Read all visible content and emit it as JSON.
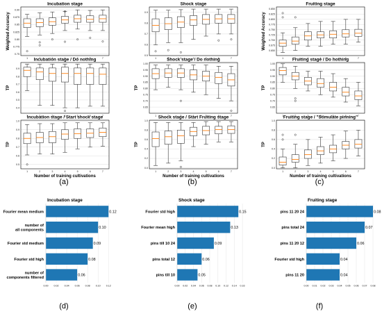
{
  "panel_letters": [
    "(a)",
    "(b)",
    "(c)",
    "(d)",
    "(e)",
    "(f)"
  ],
  "chart_data": [
    {
      "type": "box",
      "title": "Incubation stage",
      "xlabel": "",
      "ylabel": "Weighted Accuracy",
      "categories": [
        "1",
        "2",
        "3",
        "4",
        "5",
        "6",
        "7"
      ],
      "ylim": [
        0.745,
        0.91
      ],
      "yticks": [
        0.75,
        0.775,
        0.8,
        0.825,
        0.85,
        0.875,
        0.9
      ],
      "yticklabels": [
        "0.75",
        "0.775",
        "0.80",
        "0.825",
        "0.85",
        "0.875",
        "0.90"
      ],
      "boxes": [
        {
          "whislo": 0.81,
          "q1": 0.84,
          "med": 0.855,
          "q3": 0.87,
          "whishi": 0.885,
          "fliers": [
            0.76
          ]
        },
        {
          "whislo": 0.815,
          "q1": 0.843,
          "med": 0.857,
          "q3": 0.87,
          "whishi": 0.89,
          "fliers": [
            0.79,
            0.78
          ]
        },
        {
          "whislo": 0.82,
          "q1": 0.848,
          "med": 0.86,
          "q3": 0.873,
          "whishi": 0.893,
          "fliers": [
            0.8
          ]
        },
        {
          "whislo": 0.83,
          "q1": 0.855,
          "med": 0.866,
          "q3": 0.878,
          "whishi": 0.895,
          "fliers": [
            0.895,
            0.792
          ]
        },
        {
          "whislo": 0.835,
          "q1": 0.858,
          "med": 0.87,
          "q3": 0.882,
          "whishi": 0.9,
          "fliers": [
            0.8
          ]
        },
        {
          "whislo": 0.83,
          "q1": 0.858,
          "med": 0.868,
          "q3": 0.88,
          "whishi": 0.898,
          "fliers": [
            0.805
          ]
        },
        {
          "whislo": 0.83,
          "q1": 0.858,
          "med": 0.87,
          "q3": 0.882,
          "whishi": 0.9,
          "fliers": [
            0.793
          ]
        }
      ]
    },
    {
      "type": "box",
      "title": "Shock stage",
      "xlabel": "",
      "ylabel": "",
      "categories": [
        "1",
        "2",
        "3",
        "4",
        "5",
        "6",
        "7"
      ],
      "ylim": [
        0.5,
        0.95
      ],
      "yticks": [
        0.5,
        0.6,
        0.7,
        0.8,
        0.9
      ],
      "yticklabels": [
        "0.5",
        "0.6",
        "0.7",
        "0.8",
        "0.9"
      ],
      "boxes": [
        {
          "whislo": 0.6,
          "q1": 0.72,
          "med": 0.78,
          "q3": 0.84,
          "whishi": 0.92,
          "fliers": [
            0.54
          ]
        },
        {
          "whislo": 0.62,
          "q1": 0.74,
          "med": 0.795,
          "q3": 0.85,
          "whishi": 0.92,
          "fliers": [
            0.55
          ]
        },
        {
          "whislo": 0.62,
          "q1": 0.76,
          "med": 0.81,
          "q3": 0.86,
          "whishi": 0.925,
          "fliers": [
            0.53
          ]
        },
        {
          "whislo": 0.65,
          "q1": 0.78,
          "med": 0.83,
          "q3": 0.87,
          "whishi": 0.93,
          "fliers": []
        },
        {
          "whislo": 0.68,
          "q1": 0.79,
          "med": 0.835,
          "q3": 0.88,
          "whishi": 0.93,
          "fliers": []
        },
        {
          "whislo": 0.7,
          "q1": 0.8,
          "med": 0.84,
          "q3": 0.88,
          "whishi": 0.93,
          "fliers": [
            0.64
          ]
        },
        {
          "whislo": 0.7,
          "q1": 0.8,
          "med": 0.84,
          "q3": 0.88,
          "whishi": 0.93,
          "fliers": [
            0.65
          ]
        }
      ]
    },
    {
      "type": "box",
      "title": "Fruiting stage",
      "xlabel": "",
      "ylabel": "Weighted Accuracy",
      "categories": [
        "1",
        "2",
        "3",
        "4",
        "5",
        "6",
        "7"
      ],
      "ylim": [
        0.625,
        0.86
      ],
      "yticks": [
        0.65,
        0.675,
        0.7,
        0.725,
        0.75,
        0.775,
        0.8,
        0.825,
        0.85
      ],
      "yticklabels": [
        "0.650",
        "0.675",
        "0.700",
        "0.725",
        "0.750",
        "0.775",
        "0.800",
        "0.825",
        "0.850"
      ],
      "boxes": [
        {
          "whislo": 0.64,
          "q1": 0.67,
          "med": 0.685,
          "q3": 0.7,
          "whishi": 0.735,
          "fliers": [
            0.83,
            0.81
          ]
        },
        {
          "whislo": 0.65,
          "q1": 0.68,
          "med": 0.695,
          "q3": 0.715,
          "whishi": 0.76,
          "fliers": [
            0.81
          ]
        },
        {
          "whislo": 0.67,
          "q1": 0.7,
          "med": 0.72,
          "q3": 0.74,
          "whishi": 0.78,
          "fliers": []
        },
        {
          "whislo": 0.67,
          "q1": 0.71,
          "med": 0.725,
          "q3": 0.74,
          "whishi": 0.79,
          "fliers": []
        },
        {
          "whislo": 0.68,
          "q1": 0.71,
          "med": 0.728,
          "q3": 0.745,
          "whishi": 0.79,
          "fliers": []
        },
        {
          "whislo": 0.68,
          "q1": 0.715,
          "med": 0.73,
          "q3": 0.75,
          "whishi": 0.8,
          "fliers": []
        },
        {
          "whislo": 0.69,
          "q1": 0.718,
          "med": 0.733,
          "q3": 0.752,
          "whishi": 0.8,
          "fliers": []
        }
      ]
    },
    {
      "type": "box",
      "title": "Incubation stage  / Do nothing",
      "xlabel": "",
      "ylabel": "TP",
      "categories": [
        "1",
        "2",
        "3",
        "4",
        "5",
        "6",
        "7"
      ],
      "ylim": [
        0.33,
        0.98
      ],
      "yticks": [
        0.4,
        0.5,
        0.6,
        0.7,
        0.8,
        0.9
      ],
      "yticklabels": [
        "0.4",
        "0.5",
        "0.6",
        "0.7",
        "0.8",
        "0.9"
      ],
      "boxes": [
        {
          "whislo": 0.62,
          "q1": 0.8,
          "med": 0.88,
          "q3": 0.92,
          "whishi": 0.96,
          "fliers": []
        },
        {
          "whislo": 0.43,
          "q1": 0.76,
          "med": 0.86,
          "q3": 0.91,
          "whishi": 0.96,
          "fliers": []
        },
        {
          "whislo": 0.43,
          "q1": 0.74,
          "med": 0.84,
          "q3": 0.91,
          "whishi": 0.96,
          "fliers": []
        },
        {
          "whislo": 0.4,
          "q1": 0.73,
          "med": 0.84,
          "q3": 0.92,
          "whishi": 0.96,
          "fliers": [
            0.36
          ]
        },
        {
          "whislo": 0.4,
          "q1": 0.7,
          "med": 0.84,
          "q3": 0.91,
          "whishi": 0.96,
          "fliers": []
        },
        {
          "whislo": 0.42,
          "q1": 0.7,
          "med": 0.84,
          "q3": 0.91,
          "whishi": 0.96,
          "fliers": []
        },
        {
          "whislo": 0.42,
          "q1": 0.7,
          "med": 0.83,
          "q3": 0.91,
          "whishi": 0.96,
          "fliers": []
        }
      ]
    },
    {
      "type": "box",
      "title": "Shock stage  / Do nothing",
      "xlabel": "",
      "ylabel": "TP",
      "categories": [
        "1",
        "2",
        "3",
        "4",
        "5",
        "6",
        "7"
      ],
      "ylim": [
        0.6,
        1.01
      ],
      "yticks": [
        0.65,
        0.7,
        0.75,
        0.8,
        0.85,
        0.9,
        0.95,
        1.0
      ],
      "yticklabels": [
        "0.65",
        "0.70",
        "0.75",
        "0.80",
        "0.85",
        "0.90",
        "0.95",
        "1.00"
      ],
      "boxes": [
        {
          "whislo": 0.79,
          "q1": 0.88,
          "med": 0.92,
          "q3": 0.96,
          "whishi": 0.99,
          "fliers": []
        },
        {
          "whislo": 0.81,
          "q1": 0.89,
          "med": 0.925,
          "q3": 0.96,
          "whishi": 0.99,
          "fliers": []
        },
        {
          "whislo": 0.79,
          "q1": 0.89,
          "med": 0.925,
          "q3": 0.96,
          "whishi": 0.99,
          "fliers": [
            0.7
          ]
        },
        {
          "whislo": 0.77,
          "q1": 0.87,
          "med": 0.91,
          "q3": 0.95,
          "whishi": 0.99,
          "fliers": []
        },
        {
          "whislo": 0.75,
          "q1": 0.86,
          "med": 0.9,
          "q3": 0.94,
          "whishi": 0.99,
          "fliers": []
        },
        {
          "whislo": 0.72,
          "q1": 0.84,
          "med": 0.89,
          "q3": 0.93,
          "whishi": 0.98,
          "fliers": []
        },
        {
          "whislo": 0.7,
          "q1": 0.82,
          "med": 0.87,
          "q3": 0.92,
          "whishi": 0.98,
          "fliers": [
            0.62
          ]
        }
      ]
    },
    {
      "type": "box",
      "title": "Fruiting stage  / Do nothing",
      "xlabel": "",
      "ylabel": "TP",
      "categories": [
        "1",
        "2",
        "3",
        "4",
        "5",
        "6",
        "7"
      ],
      "ylim": [
        0.6,
        1.01
      ],
      "yticks": [
        0.65,
        0.7,
        0.75,
        0.8,
        0.85,
        0.9,
        0.95,
        1.0
      ],
      "yticklabels": [
        "0.65",
        "0.70",
        "0.75",
        "0.80",
        "0.85",
        "0.90",
        "0.95",
        "1.00"
      ],
      "boxes": [
        {
          "whislo": 0.85,
          "q1": 0.91,
          "med": 0.945,
          "q3": 0.97,
          "whishi": 1.0,
          "fliers": []
        },
        {
          "whislo": 0.8,
          "q1": 0.87,
          "med": 0.9,
          "q3": 0.93,
          "whishi": 0.98,
          "fliers": [
            0.72,
            0.7
          ]
        },
        {
          "whislo": 0.78,
          "q1": 0.83,
          "med": 0.86,
          "q3": 0.89,
          "whishi": 0.94,
          "fliers": []
        },
        {
          "whislo": 0.75,
          "q1": 0.81,
          "med": 0.84,
          "q3": 0.88,
          "whishi": 0.94,
          "fliers": []
        },
        {
          "whislo": 0.73,
          "q1": 0.78,
          "med": 0.81,
          "q3": 0.85,
          "whishi": 0.92,
          "fliers": []
        },
        {
          "whislo": 0.69,
          "q1": 0.74,
          "med": 0.77,
          "q3": 0.81,
          "whishi": 0.88,
          "fliers": []
        },
        {
          "whislo": 0.66,
          "q1": 0.71,
          "med": 0.74,
          "q3": 0.78,
          "whishi": 0.85,
          "fliers": []
        }
      ]
    },
    {
      "type": "box",
      "title": "Incubation stage  / Start shock stage",
      "xlabel": "Number of training cultivations",
      "ylabel": "TP",
      "categories": [
        "1",
        "2",
        "3",
        "4",
        "5",
        "6",
        "7"
      ],
      "ylim": [
        0.45,
        1.01
      ],
      "yticks": [
        0.5,
        0.6,
        0.7,
        0.8,
        0.9,
        1.0
      ],
      "yticklabels": [
        "0.5",
        "0.6",
        "0.7",
        "0.8",
        "0.9",
        "1.0"
      ],
      "boxes": [
        {
          "whislo": 0.61,
          "q1": 0.74,
          "med": 0.8,
          "q3": 0.86,
          "whishi": 0.96,
          "fliers": [
            0.5
          ]
        },
        {
          "whislo": 0.62,
          "q1": 0.75,
          "med": 0.81,
          "q3": 0.87,
          "whishi": 0.97,
          "fliers": []
        },
        {
          "whislo": 0.62,
          "q1": 0.75,
          "med": 0.82,
          "q3": 0.88,
          "whishi": 0.97,
          "fliers": []
        },
        {
          "whislo": 0.64,
          "q1": 0.79,
          "med": 0.85,
          "q3": 0.9,
          "whishi": 0.98,
          "fliers": []
        },
        {
          "whislo": 0.68,
          "q1": 0.8,
          "med": 0.855,
          "q3": 0.91,
          "whishi": 0.98,
          "fliers": []
        },
        {
          "whislo": 0.7,
          "q1": 0.81,
          "med": 0.86,
          "q3": 0.91,
          "whishi": 0.98,
          "fliers": []
        },
        {
          "whislo": 0.71,
          "q1": 0.82,
          "med": 0.87,
          "q3": 0.92,
          "whishi": 0.98,
          "fliers": []
        }
      ]
    },
    {
      "type": "box",
      "title": "Shock stage  / Start Fruiting stage",
      "xlabel": "Number of training cultivations",
      "ylabel": "TP",
      "categories": [
        "1",
        "2",
        "3",
        "4",
        "5",
        "6",
        "7"
      ],
      "ylim": [
        -0.02,
        1.01
      ],
      "yticks": [
        0.0,
        0.2,
        0.4,
        0.6,
        0.8,
        1.0
      ],
      "yticklabels": [
        "0.0",
        "0.2",
        "0.4",
        "0.6",
        "0.8",
        "1.0"
      ],
      "boxes": [
        {
          "whislo": 0.05,
          "q1": 0.45,
          "med": 0.62,
          "q3": 0.76,
          "whishi": 0.96,
          "fliers": []
        },
        {
          "whislo": 0.1,
          "q1": 0.5,
          "med": 0.66,
          "q3": 0.78,
          "whishi": 0.96,
          "fliers": []
        },
        {
          "whislo": 0.15,
          "q1": 0.52,
          "med": 0.68,
          "q3": 0.8,
          "whishi": 0.96,
          "fliers": [
            0.02
          ]
        },
        {
          "whislo": 0.45,
          "q1": 0.68,
          "med": 0.77,
          "q3": 0.86,
          "whishi": 0.96,
          "fliers": []
        },
        {
          "whislo": 0.5,
          "q1": 0.7,
          "med": 0.79,
          "q3": 0.88,
          "whishi": 0.98,
          "fliers": []
        },
        {
          "whislo": 0.55,
          "q1": 0.72,
          "med": 0.81,
          "q3": 0.88,
          "whishi": 0.98,
          "fliers": []
        },
        {
          "whislo": 0.55,
          "q1": 0.73,
          "med": 0.81,
          "q3": 0.89,
          "whishi": 0.98,
          "fliers": []
        }
      ]
    },
    {
      "type": "box",
      "title": "Fruiting stage  / \"Stimulate pinning\"",
      "xlabel": "Number of training cultivations",
      "ylabel": "TP",
      "categories": [
        "1",
        "2",
        "3",
        "4",
        "5",
        "6",
        "7"
      ],
      "ylim": [
        -0.02,
        1.01
      ],
      "yticks": [
        0.0,
        0.2,
        0.4,
        0.6,
        0.8,
        1.0
      ],
      "yticklabels": [
        "0.0",
        "0.2",
        "0.4",
        "0.6",
        "0.8",
        "1.0"
      ],
      "boxes": [
        {
          "whislo": 0.0,
          "q1": 0.06,
          "med": 0.12,
          "q3": 0.23,
          "whishi": 0.4,
          "fliers": [
            0.7,
            0.6
          ]
        },
        {
          "whislo": 0.0,
          "q1": 0.12,
          "med": 0.18,
          "q3": 0.28,
          "whishi": 0.5,
          "fliers": [
            0.7
          ]
        },
        {
          "whislo": 0.05,
          "q1": 0.2,
          "med": 0.28,
          "q3": 0.38,
          "whishi": 0.6,
          "fliers": []
        },
        {
          "whislo": 0.1,
          "q1": 0.28,
          "med": 0.36,
          "q3": 0.45,
          "whishi": 0.65,
          "fliers": []
        },
        {
          "whislo": 0.15,
          "q1": 0.32,
          "med": 0.4,
          "q3": 0.48,
          "whishi": 0.7,
          "fliers": []
        },
        {
          "whislo": 0.2,
          "q1": 0.4,
          "med": 0.48,
          "q3": 0.56,
          "whishi": 0.78,
          "fliers": []
        },
        {
          "whislo": 0.25,
          "q1": 0.42,
          "med": 0.5,
          "q3": 0.6,
          "whishi": 0.8,
          "fliers": []
        }
      ]
    },
    {
      "type": "bar",
      "orientation": "horizontal",
      "title": "Incubation stage",
      "xlabel": "",
      "ylabel": "",
      "categories": [
        "Fourier mean medium",
        "number of all components",
        "Fourier std medium",
        "Fourier std high",
        "number of components filtered"
      ],
      "values": [
        0.12,
        0.1,
        0.09,
        0.08,
        0.06
      ],
      "value_labels": [
        "0.12",
        "0.10",
        "0.09",
        "0.08",
        "0.06"
      ],
      "xlim": [
        0,
        0.125
      ],
      "xticks": [
        0,
        0.02,
        0.04,
        0.06,
        0.08,
        0.1,
        0.12
      ],
      "xticklabels": [
        "0.00",
        "0.02",
        "0.04",
        "0.06",
        "0.08",
        "0.10",
        "0.12"
      ],
      "color": "#1f77b4"
    },
    {
      "type": "bar",
      "orientation": "horizontal",
      "title": "Shock stage",
      "xlabel": "",
      "ylabel": "",
      "categories": [
        "Fourier std high",
        "Fourier mean high",
        "pins till 10 24",
        "pins total 12",
        "pins till 10"
      ],
      "values": [
        0.15,
        0.13,
        0.09,
        0.06,
        0.05
      ],
      "value_labels": [
        "0.15",
        "0.13",
        "0.09",
        "0.06",
        "0.05"
      ],
      "xlim": [
        0,
        0.165
      ],
      "xticks": [
        0,
        0.02,
        0.04,
        0.06,
        0.08,
        0.1,
        0.12,
        0.14,
        0.16
      ],
      "xticklabels": [
        "0.00",
        "0.02",
        "0.04",
        "0.06",
        "0.08",
        "0.10",
        "0.12",
        "0.14",
        "0.16"
      ],
      "color": "#1f77b4"
    },
    {
      "type": "bar",
      "orientation": "horizontal",
      "title": "Fruiting stage",
      "xlabel": "",
      "ylabel": "",
      "categories": [
        "pins 11 20 24",
        "pins total 24",
        "pins 11 20 12",
        "Fourier std high",
        "pins 11 20"
      ],
      "values": [
        0.08,
        0.07,
        0.06,
        0.04,
        0.04
      ],
      "value_labels": [
        "0.08",
        "0.07",
        "0.06",
        "0.04",
        "0.04"
      ],
      "xlim": [
        0,
        0.085
      ],
      "xticks": [
        0,
        0.01,
        0.02,
        0.03,
        0.04,
        0.05,
        0.06,
        0.07,
        0.08
      ],
      "xticklabels": [
        "0.00",
        "0.01",
        "0.02",
        "0.03",
        "0.04",
        "0.05",
        "0.06",
        "0.07",
        "0.08"
      ],
      "color": "#1f77b4"
    }
  ]
}
